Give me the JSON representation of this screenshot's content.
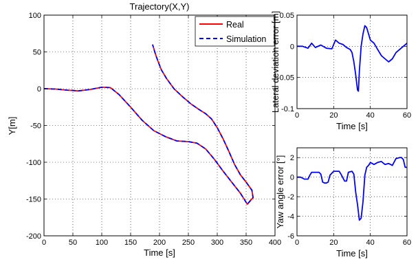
{
  "chart_data": [
    {
      "type": "line",
      "title": "Trajectory(X,Y)",
      "xlabel": "Time [s]",
      "ylabel": "Y[m]",
      "xlim": [
        0,
        400
      ],
      "ylim": [
        -200,
        100
      ],
      "xticks": [
        0,
        50,
        100,
        150,
        200,
        250,
        300,
        350,
        400
      ],
      "yticks": [
        -200,
        -150,
        -100,
        -50,
        0,
        50,
        100
      ],
      "grid": true,
      "legend_position": "top-right",
      "series": [
        {
          "name": "Real",
          "color": "#ff0000",
          "style": "solid",
          "x": [
            0,
            20,
            40,
            60,
            80,
            100,
            115,
            130,
            150,
            170,
            190,
            210,
            230,
            250,
            265,
            280,
            295,
            310,
            325,
            340,
            352,
            362,
            360,
            350,
            340,
            330,
            320,
            310,
            300,
            290,
            280,
            268,
            255,
            240,
            225,
            212,
            203,
            197,
            193,
            190,
            188
          ],
          "y": [
            0,
            -0.5,
            -2,
            -3,
            -1,
            2,
            1.5,
            -8,
            -25,
            -43,
            -57,
            -65,
            -71,
            -72,
            -74,
            -82,
            -96,
            -112,
            -127,
            -142,
            -157,
            -148,
            -138,
            -127,
            -117,
            -103,
            -85,
            -68,
            -53,
            -41,
            -34,
            -28,
            -21,
            -11,
            0,
            14,
            26,
            38,
            47,
            55,
            60
          ]
        },
        {
          "name": "Simulation",
          "color": "#0000ff",
          "style": "dashed",
          "x": [
            0,
            20,
            40,
            60,
            80,
            100,
            115,
            130,
            150,
            170,
            190,
            210,
            230,
            250,
            265,
            280,
            295,
            310,
            325,
            340,
            352,
            362,
            360,
            350,
            340,
            330,
            320,
            310,
            300,
            290,
            280,
            268,
            255,
            240,
            225,
            212,
            203,
            197,
            193,
            190,
            188
          ],
          "y": [
            0,
            -0.5,
            -2,
            -3,
            -1,
            2,
            1.5,
            -8,
            -25,
            -43,
            -57,
            -65,
            -71,
            -72,
            -74,
            -82,
            -96,
            -112,
            -127,
            -142,
            -157,
            -148,
            -138,
            -127,
            -117,
            -103,
            -85,
            -68,
            -53,
            -41,
            -34,
            -28,
            -21,
            -11,
            0,
            14,
            26,
            38,
            47,
            55,
            60
          ]
        }
      ]
    },
    {
      "type": "line",
      "xlabel": "Time [s]",
      "ylabel": "Lateral deviation error [m]",
      "xlim": [
        0,
        60
      ],
      "ylim": [
        -0.1,
        0.05
      ],
      "xticks": [
        0,
        20,
        40,
        60
      ],
      "yticks": [
        -0.1,
        -0.05,
        0,
        0.05
      ],
      "grid": true,
      "series": [
        {
          "color": "#0000ff",
          "x": [
            0,
            3,
            6,
            8,
            10,
            13,
            16,
            19,
            21,
            23,
            25,
            27,
            29,
            30,
            31,
            32,
            33,
            33.5,
            34,
            35,
            36,
            37,
            38,
            39,
            40,
            42,
            44,
            46,
            48,
            50,
            52,
            54,
            56,
            58,
            60
          ],
          "y": [
            0,
            0,
            -0.003,
            0.005,
            -0.002,
            0.002,
            -0.003,
            -0.004,
            0.01,
            0.005,
            0.003,
            -0.002,
            -0.005,
            -0.01,
            -0.025,
            -0.045,
            -0.07,
            -0.072,
            -0.04,
            0,
            0.02,
            0.033,
            0.03,
            0.02,
            0.01,
            0.005,
            -0.005,
            -0.015,
            -0.02,
            -0.025,
            -0.02,
            -0.01,
            -0.005,
            0,
            0.005
          ]
        }
      ]
    },
    {
      "type": "line",
      "xlabel": "Time [s]",
      "ylabel": "Yaw angle error [°]",
      "xlim": [
        0,
        60
      ],
      "ylim": [
        -6,
        3
      ],
      "xticks": [
        0,
        20,
        40,
        60
      ],
      "yticks": [
        -6,
        -4,
        -2,
        0,
        2
      ],
      "grid": true,
      "series": [
        {
          "color": "#0000ff",
          "x": [
            0,
            2,
            4,
            6,
            7,
            8,
            9,
            10,
            11,
            12,
            13,
            14,
            15,
            16,
            17,
            18,
            20,
            21,
            22,
            23,
            24,
            26,
            27,
            28,
            30,
            31,
            32,
            33,
            34,
            35,
            36,
            37,
            38,
            39,
            40,
            42,
            44,
            46,
            48,
            50,
            52,
            54,
            56,
            57,
            58,
            59,
            60
          ],
          "y": [
            0,
            0,
            -0.2,
            -0.2,
            0.2,
            0.5,
            0.5,
            0.5,
            0.5,
            0.5,
            0.3,
            -0.5,
            -0.6,
            -0.6,
            -0.5,
            0.2,
            0.6,
            0.6,
            0.6,
            0.6,
            0.3,
            -0.4,
            -0.4,
            0.5,
            0.6,
            0.3,
            -1.5,
            -2.8,
            -4.4,
            -4.2,
            -2.5,
            0.2,
            1.0,
            1.2,
            1.5,
            1.3,
            1.5,
            1.6,
            1.3,
            1.4,
            1.2,
            1.9,
            2.0,
            2.0,
            1.8,
            1.0,
            1.0
          ]
        }
      ]
    }
  ]
}
